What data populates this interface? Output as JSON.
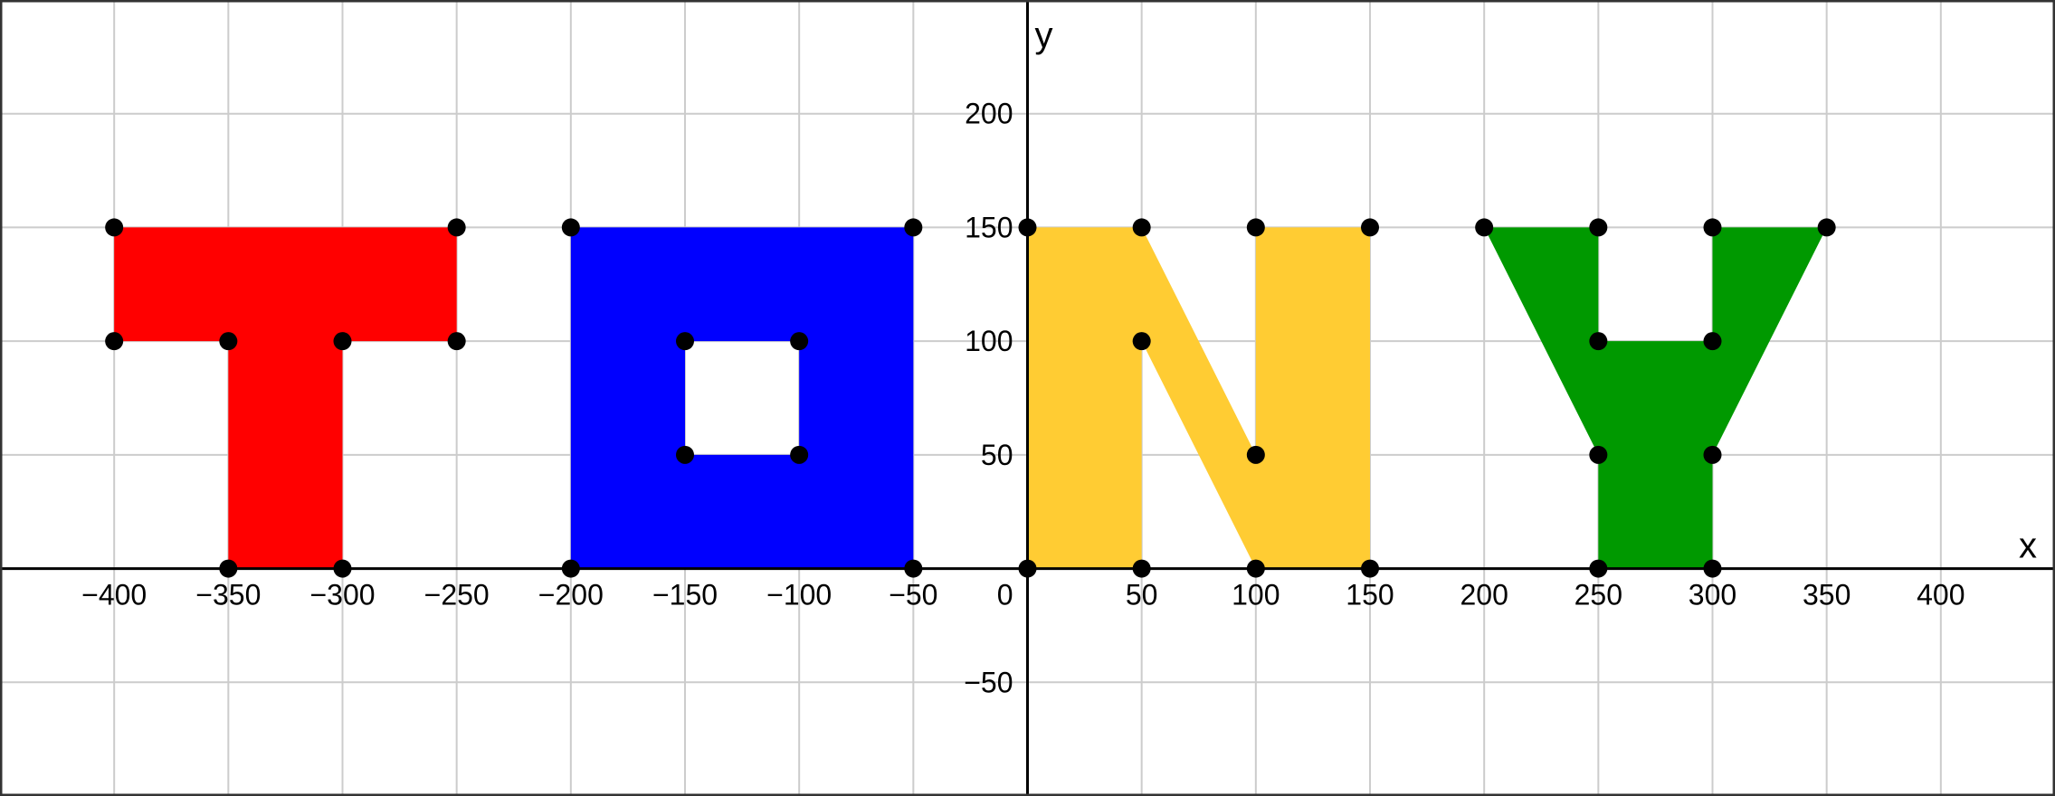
{
  "x_range": [
    -450,
    450
  ],
  "y_range": [
    -100,
    250
  ],
  "grid": true,
  "axes": {
    "x_label": "x",
    "y_label": "y"
  },
  "x_ticks": [
    -400,
    -350,
    -300,
    -250,
    -200,
    -150,
    -100,
    -50,
    50,
    100,
    150,
    200,
    250,
    300,
    350,
    400
  ],
  "y_ticks": [
    200,
    150,
    100,
    50,
    -50
  ],
  "origin_label": "0",
  "colors": {
    "grid": "#cccccc",
    "axis": "#000000",
    "point": "#000000",
    "border": "#333333"
  },
  "letters": [
    {
      "name": "letter-t",
      "color": "#ff0000",
      "polygon": [
        [
          -400,
          150
        ],
        [
          -250,
          150
        ],
        [
          -250,
          100
        ],
        [
          -300,
          100
        ],
        [
          -300,
          0
        ],
        [
          -350,
          0
        ],
        [
          -350,
          100
        ],
        [
          -400,
          100
        ]
      ],
      "hole": null
    },
    {
      "name": "letter-o",
      "color": "#0000ff",
      "polygon": [
        [
          -200,
          150
        ],
        [
          -50,
          150
        ],
        [
          -50,
          0
        ],
        [
          -200,
          0
        ]
      ],
      "hole": [
        [
          -150,
          100
        ],
        [
          -100,
          100
        ],
        [
          -100,
          50
        ],
        [
          -150,
          50
        ]
      ]
    },
    {
      "name": "letter-n",
      "color": "#ffcc33",
      "polygon": [
        [
          0,
          150
        ],
        [
          50,
          150
        ],
        [
          100,
          50
        ],
        [
          100,
          150
        ],
        [
          150,
          150
        ],
        [
          150,
          0
        ],
        [
          100,
          0
        ],
        [
          50,
          100
        ],
        [
          50,
          0
        ],
        [
          0,
          0
        ]
      ],
      "hole": null
    },
    {
      "name": "letter-y",
      "color": "#009900",
      "polygon": [
        [
          200,
          150
        ],
        [
          250,
          150
        ],
        [
          250,
          100
        ],
        [
          300,
          100
        ],
        [
          300,
          150
        ],
        [
          350,
          150
        ],
        [
          300,
          50
        ],
        [
          300,
          0
        ],
        [
          250,
          0
        ],
        [
          250,
          50
        ]
      ],
      "hole": null
    }
  ],
  "points": [
    [
      -400,
      150
    ],
    [
      -250,
      150
    ],
    [
      -400,
      100
    ],
    [
      -350,
      100
    ],
    [
      -300,
      100
    ],
    [
      -250,
      100
    ],
    [
      -350,
      0
    ],
    [
      -300,
      0
    ],
    [
      -200,
      150
    ],
    [
      -50,
      150
    ],
    [
      -150,
      100
    ],
    [
      -100,
      100
    ],
    [
      -150,
      50
    ],
    [
      -100,
      50
    ],
    [
      -200,
      0
    ],
    [
      -50,
      0
    ],
    [
      0,
      150
    ],
    [
      50,
      150
    ],
    [
      100,
      150
    ],
    [
      150,
      150
    ],
    [
      50,
      100
    ],
    [
      100,
      50
    ],
    [
      0,
      0
    ],
    [
      50,
      0
    ],
    [
      100,
      0
    ],
    [
      150,
      0
    ],
    [
      200,
      150
    ],
    [
      250,
      150
    ],
    [
      300,
      150
    ],
    [
      350,
      150
    ],
    [
      250,
      100
    ],
    [
      300,
      100
    ],
    [
      250,
      50
    ],
    [
      300,
      50
    ],
    [
      250,
      0
    ],
    [
      300,
      0
    ]
  ]
}
